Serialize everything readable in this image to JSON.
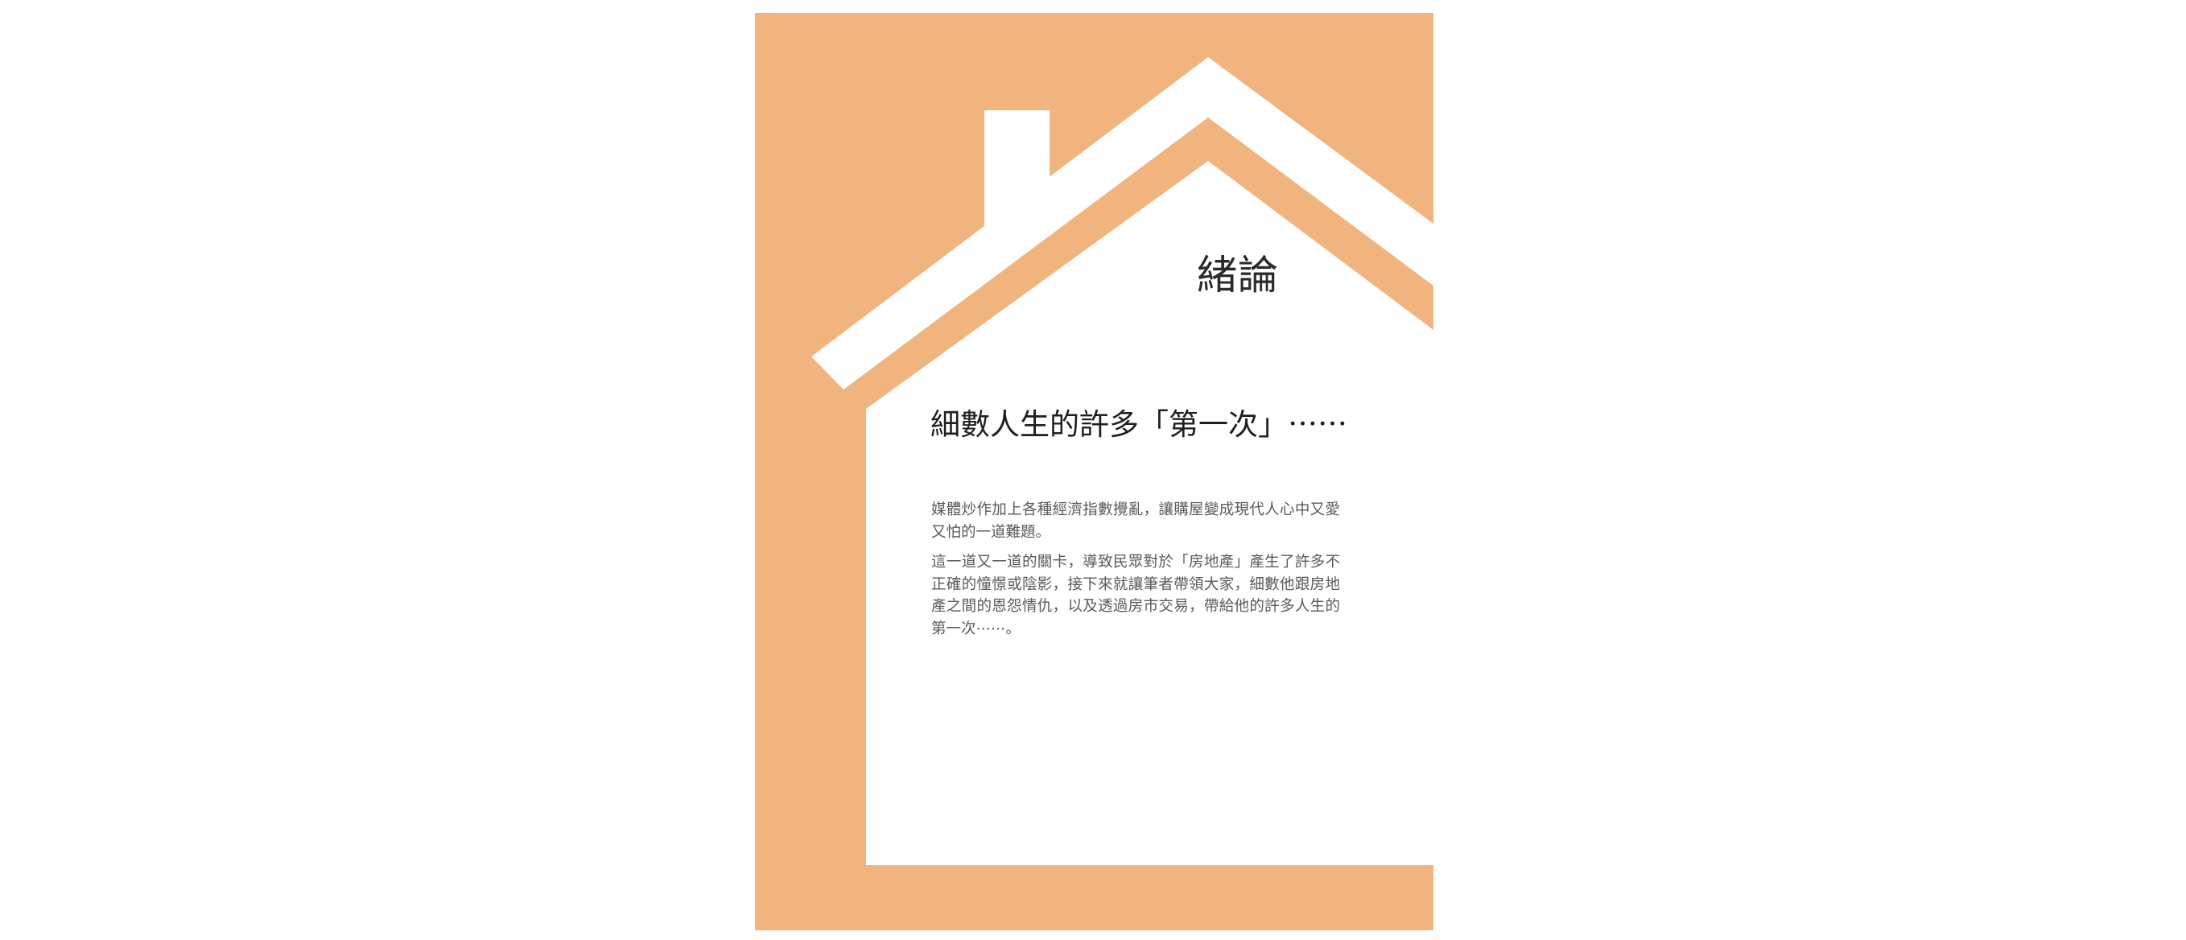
{
  "colors": {
    "accent": "#f1b47f",
    "page": "#ffffff",
    "title": "#2b2b2b",
    "body": "#5a5a5a"
  },
  "icons": {
    "illustration": "house-outline-illustration"
  },
  "chapter": {
    "title": "緒論"
  },
  "headline": "細數人生的許多「第一次」⋯⋯",
  "paragraphs": [
    "媒體炒作加上各種經濟指數攪亂，讓購屋變成現代人心中又愛又怕的一道難題。",
    "這一道又一道的關卡，導致民眾對於「房地產」產生了許多不正確的憧憬或陰影，接下來就讓筆者帶領大家，細數他跟房地產之間的恩怨情仇，以及透過房市交易，帶給他的許多人生的第一次⋯⋯。"
  ]
}
